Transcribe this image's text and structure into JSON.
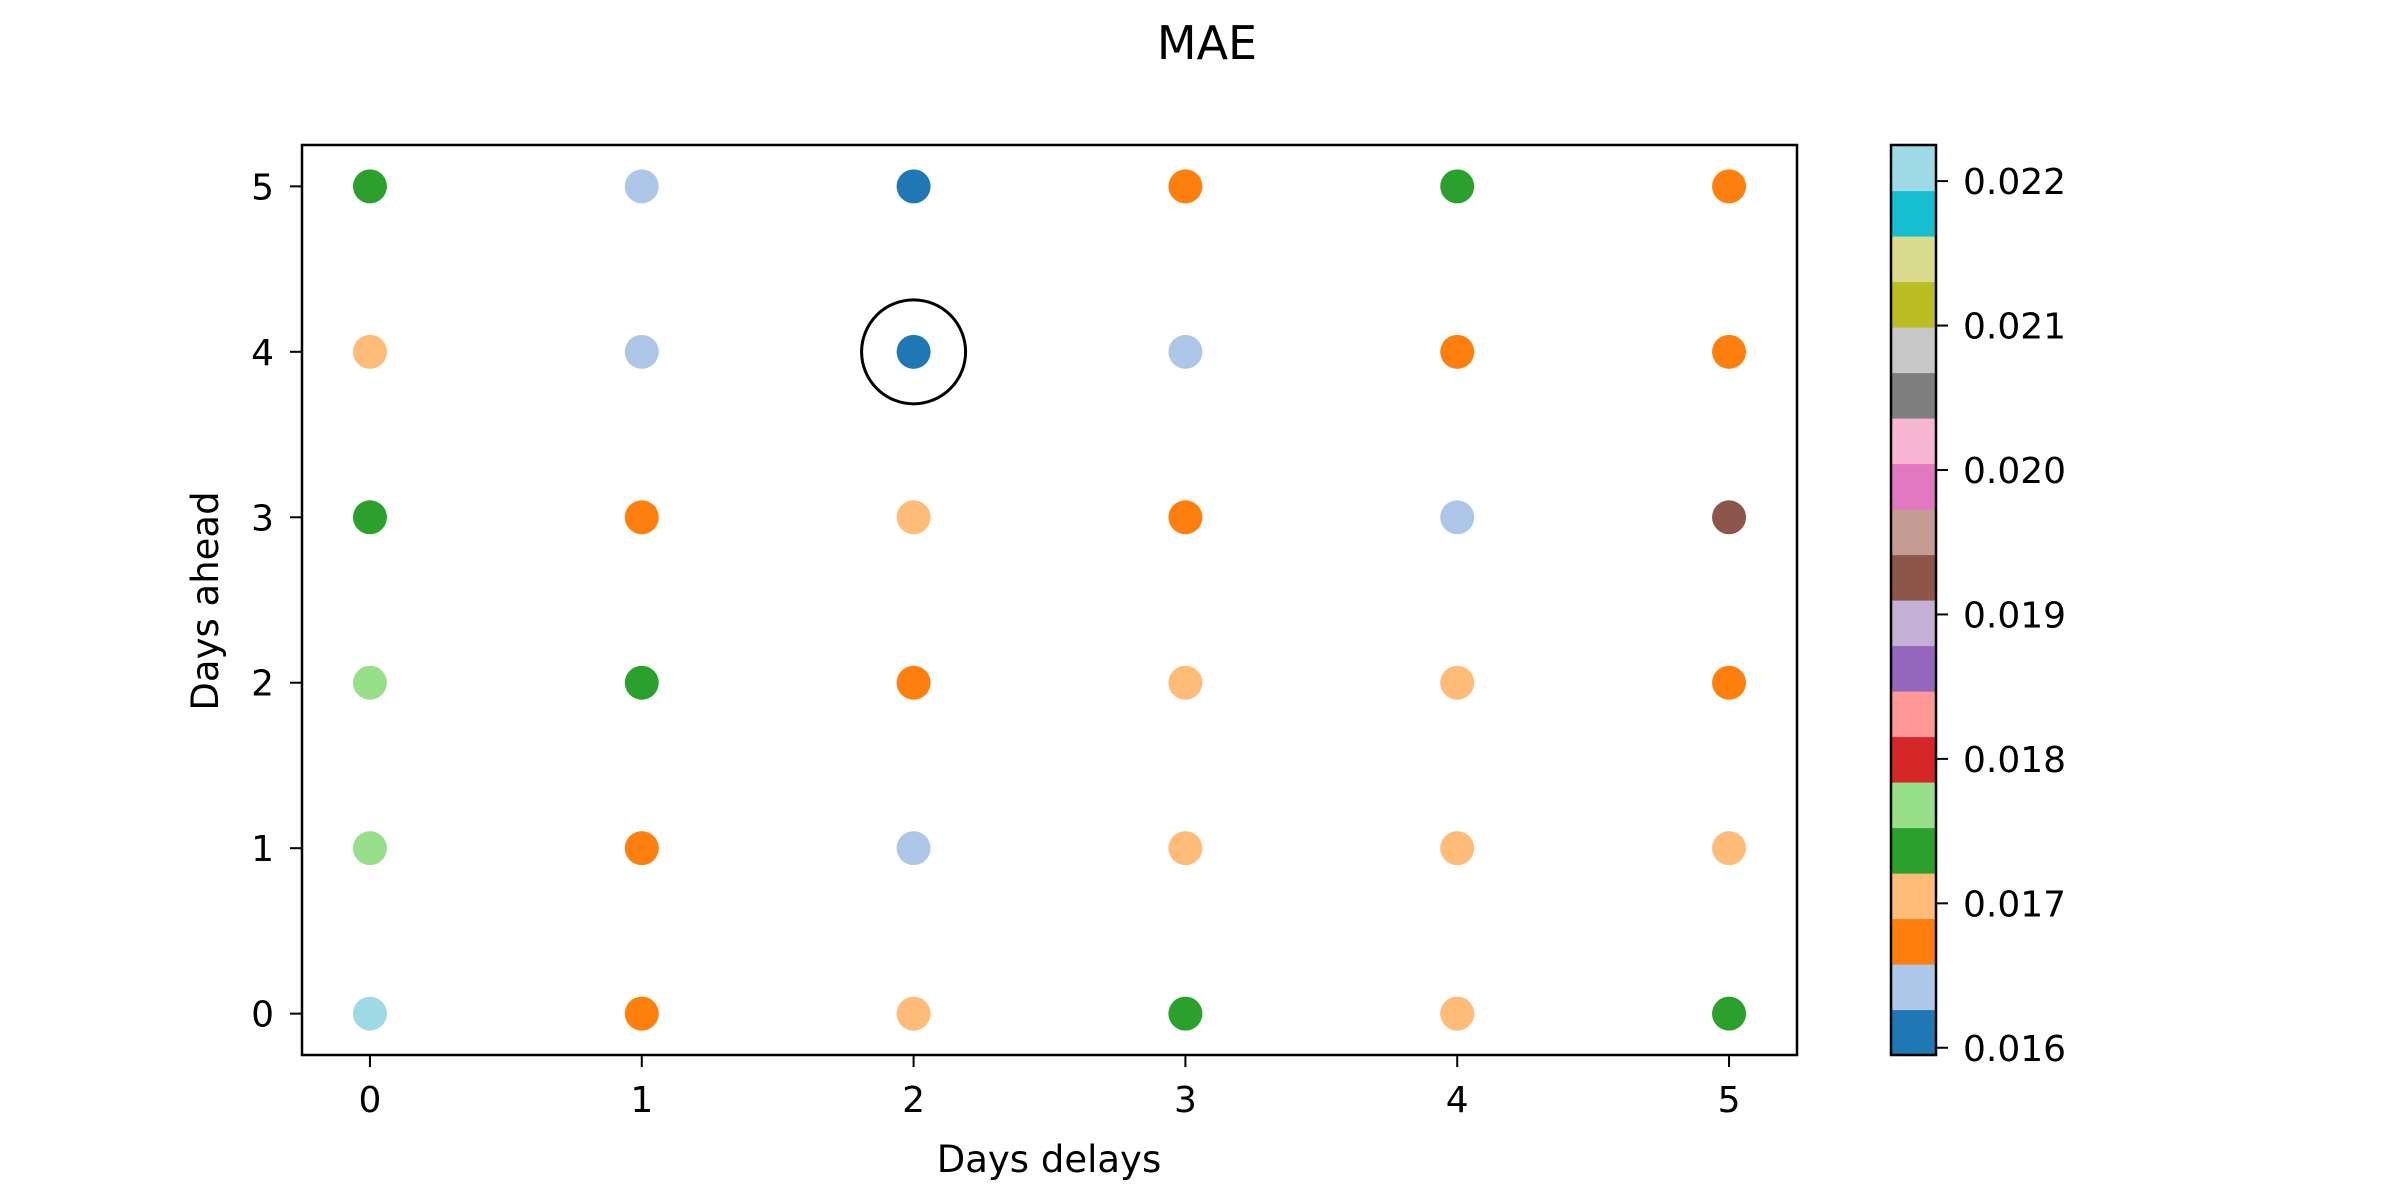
{
  "chart_data": {
    "type": "scatter",
    "title": "MAE",
    "xlabel": "Days delays",
    "ylabel": "Days ahead",
    "xlim": [
      -0.25,
      5.25
    ],
    "ylim": [
      -0.25,
      5.25
    ],
    "xticks": [
      "0",
      "1",
      "2",
      "3",
      "4",
      "5"
    ],
    "yticks": [
      "0",
      "1",
      "2",
      "3",
      "4",
      "5"
    ],
    "grid": false,
    "colormap": "tab20",
    "colormap_colors": [
      "#1f77b4",
      "#aec7e8",
      "#ff7f0e",
      "#ffbb78",
      "#2ca02c",
      "#98df8a",
      "#d62728",
      "#ff9896",
      "#9467bd",
      "#c5b0d5",
      "#8c564b",
      "#c49c94",
      "#e377c2",
      "#f7b6d2",
      "#7f7f7f",
      "#c7c7c7",
      "#bcbd22",
      "#dbdb8d",
      "#17becf",
      "#9edae5"
    ],
    "colorbar": {
      "min": 0.01595,
      "max": 0.02225,
      "ticks": [
        {
          "value": 0.016,
          "label": "0.016"
        },
        {
          "value": 0.017,
          "label": "0.017"
        },
        {
          "value": 0.018,
          "label": "0.018"
        },
        {
          "value": 0.019,
          "label": "0.019"
        },
        {
          "value": 0.02,
          "label": "0.020"
        },
        {
          "value": 0.021,
          "label": "0.021"
        },
        {
          "value": 0.022,
          "label": "0.022"
        }
      ]
    },
    "best_point": {
      "x": 2,
      "y": 4
    },
    "points": [
      {
        "x": 0,
        "y": 5,
        "value": 0.0175
      },
      {
        "x": 1,
        "y": 5,
        "value": 0.0165
      },
      {
        "x": 2,
        "y": 5,
        "value": 0.0161
      },
      {
        "x": 3,
        "y": 5,
        "value": 0.0168
      },
      {
        "x": 4,
        "y": 5,
        "value": 0.0175
      },
      {
        "x": 5,
        "y": 5,
        "value": 0.0168
      },
      {
        "x": 0,
        "y": 4,
        "value": 0.0171
      },
      {
        "x": 1,
        "y": 4,
        "value": 0.0165
      },
      {
        "x": 2,
        "y": 4,
        "value": 0.0161
      },
      {
        "x": 3,
        "y": 4,
        "value": 0.0165
      },
      {
        "x": 4,
        "y": 4,
        "value": 0.0168
      },
      {
        "x": 5,
        "y": 4,
        "value": 0.0168
      },
      {
        "x": 0,
        "y": 3,
        "value": 0.0175
      },
      {
        "x": 1,
        "y": 3,
        "value": 0.0168
      },
      {
        "x": 2,
        "y": 3,
        "value": 0.0171
      },
      {
        "x": 3,
        "y": 3,
        "value": 0.0168
      },
      {
        "x": 4,
        "y": 3,
        "value": 0.0165
      },
      {
        "x": 5,
        "y": 3,
        "value": 0.0193
      },
      {
        "x": 0,
        "y": 2,
        "value": 0.0178
      },
      {
        "x": 1,
        "y": 2,
        "value": 0.0175
      },
      {
        "x": 2,
        "y": 2,
        "value": 0.0168
      },
      {
        "x": 3,
        "y": 2,
        "value": 0.0171
      },
      {
        "x": 4,
        "y": 2,
        "value": 0.0171
      },
      {
        "x": 5,
        "y": 2,
        "value": 0.0168
      },
      {
        "x": 0,
        "y": 1,
        "value": 0.0178
      },
      {
        "x": 1,
        "y": 1,
        "value": 0.0168
      },
      {
        "x": 2,
        "y": 1,
        "value": 0.0165
      },
      {
        "x": 3,
        "y": 1,
        "value": 0.0171
      },
      {
        "x": 4,
        "y": 1,
        "value": 0.0171
      },
      {
        "x": 5,
        "y": 1,
        "value": 0.0171
      },
      {
        "x": 0,
        "y": 0,
        "value": 0.0221
      },
      {
        "x": 1,
        "y": 0,
        "value": 0.0168
      },
      {
        "x": 2,
        "y": 0,
        "value": 0.0171
      },
      {
        "x": 3,
        "y": 0,
        "value": 0.0175
      },
      {
        "x": 4,
        "y": 0,
        "value": 0.0171
      },
      {
        "x": 5,
        "y": 0,
        "value": 0.0175
      }
    ]
  }
}
